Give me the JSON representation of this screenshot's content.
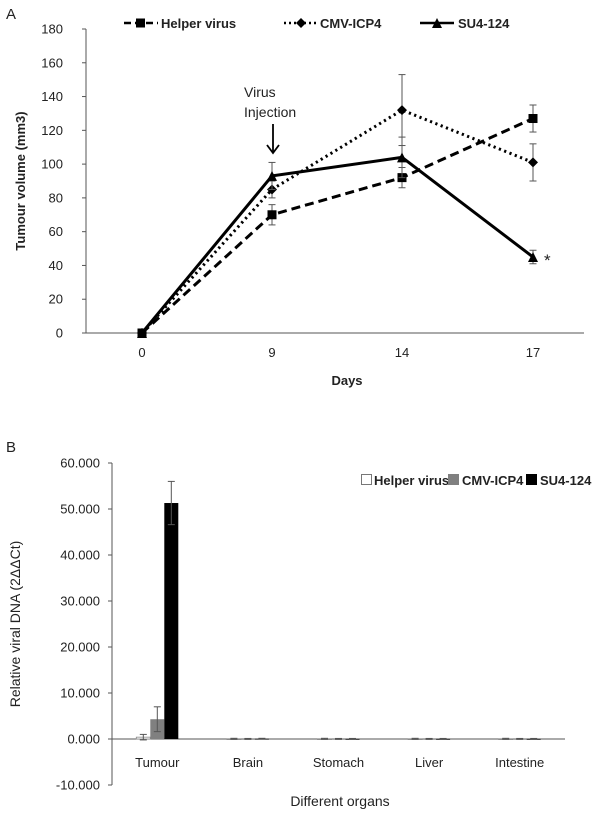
{
  "chart_data": [
    {
      "panel": "A",
      "type": "line",
      "title": "",
      "xlabel": "Days",
      "ylabel": "Tumour volume (mm3)",
      "categories": [
        "0",
        "9",
        "14",
        "17"
      ],
      "ylim": [
        0,
        180
      ],
      "yticks": [
        0,
        20,
        40,
        60,
        80,
        100,
        120,
        140,
        160,
        180
      ],
      "legend_position": "top",
      "series": [
        {
          "name": "Helper virus",
          "marker": "square",
          "line": "dashed",
          "values": [
            0,
            70,
            92,
            127
          ],
          "errors": [
            0,
            6,
            6,
            8
          ]
        },
        {
          "name": "CMV-ICP4",
          "marker": "diamond",
          "line": "dotted",
          "values": [
            0,
            85,
            132,
            101
          ],
          "errors": [
            0,
            5,
            21,
            11
          ]
        },
        {
          "name": "SU4-124",
          "marker": "triangle",
          "line": "solid",
          "values": [
            0,
            93,
            104,
            45
          ],
          "errors": [
            0,
            8,
            12,
            4
          ]
        }
      ],
      "annotations": {
        "arrow_label_line1": "Virus",
        "arrow_label_line2": "Injection",
        "arrow_at_category": "9",
        "significance_mark": "*"
      }
    },
    {
      "panel": "B",
      "type": "bar",
      "title": "",
      "xlabel": "Different organs",
      "ylabel": "Relative viral DNA (2ΔΔCt)",
      "categories": [
        "Tumour",
        "Brain",
        "Stomach",
        "Liver",
        "Intestine"
      ],
      "ylim": [
        -10,
        60
      ],
      "yticks": [
        "-10.000",
        "0.000",
        "10.000",
        "20.000",
        "30.000",
        "40.000",
        "50.000",
        "60.000"
      ],
      "legend_position": "top-right",
      "series": [
        {
          "name": "Helper virus",
          "color": "#ffffff",
          "values": [
            0.4,
            0.05,
            0.05,
            0.05,
            0.05
          ],
          "errors": [
            0.6,
            0.1,
            0.1,
            0.1,
            0.1
          ]
        },
        {
          "name": "CMV-ICP4",
          "color": "#808080",
          "values": [
            4.3,
            0.02,
            0.02,
            0.02,
            0.02
          ],
          "errors": [
            2.7,
            0.1,
            0.1,
            0.1,
            0.1
          ]
        },
        {
          "name": "SU4-124",
          "color": "#000000",
          "values": [
            51.3,
            0.05,
            0.02,
            0.02,
            0.02
          ],
          "errors": [
            4.7,
            0.1,
            0.1,
            0.1,
            0.1
          ]
        }
      ]
    }
  ]
}
